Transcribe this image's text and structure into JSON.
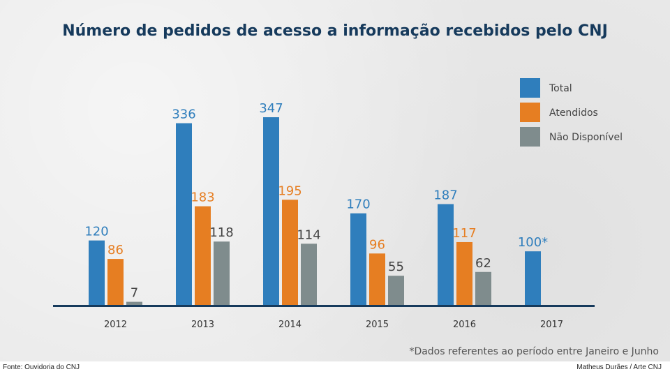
{
  "chart_data": {
    "type": "bar",
    "title": "Número de pedidos de acesso a informação recebidos pelo CNJ",
    "categories": [
      "2012",
      "2013",
      "2014",
      "2015",
      "2016",
      "2017"
    ],
    "series": [
      {
        "name": "Total",
        "color": "#2f7ebc",
        "values": [
          120,
          336,
          347,
          170,
          187,
          100
        ],
        "labels": [
          "120",
          "336",
          "347",
          "170",
          "187",
          "100*"
        ]
      },
      {
        "name": "Atendidos",
        "color": "#e67e22",
        "values": [
          86,
          183,
          195,
          96,
          117,
          null
        ],
        "labels": [
          "86",
          "183",
          "195",
          "96",
          "117",
          ""
        ]
      },
      {
        "name": "Não Disponível",
        "color": "#7f8c8d",
        "values": [
          7,
          118,
          114,
          55,
          62,
          null
        ],
        "labels": [
          "7",
          "118",
          "114",
          "55",
          "62",
          ""
        ]
      }
    ],
    "xlabel": "",
    "ylabel": "",
    "ylim": [
      0,
      350
    ],
    "legend_position": "top-right",
    "grid": false,
    "label_colors": {
      "Total": "#2f7ebc",
      "Atendidos": "#e67e22",
      "Não Disponível": "#444444"
    },
    "axis_color": "#163a5c"
  },
  "note": "*Dados referentes ao período entre Janeiro e Junho",
  "footer": {
    "source": "Fonte: Ouvidoria do CNJ",
    "credit": "Matheus Durães / Arte CNJ"
  }
}
